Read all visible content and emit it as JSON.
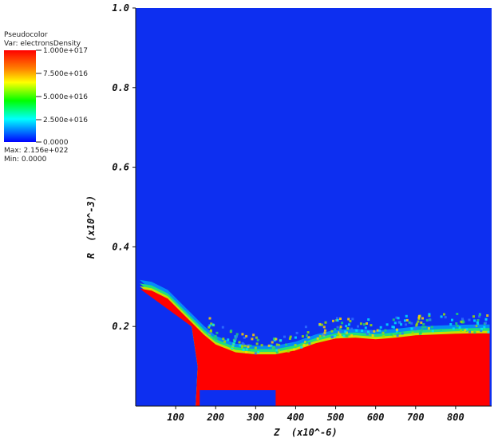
{
  "legend": {
    "plot_type": "Pseudocolor",
    "var_line": "Var: electronsDensity",
    "max_line": "Max: 2.156e+022",
    "min_line": "Min: 0.0000",
    "scale_labels": [
      "1.000e+017",
      "7.500e+016",
      "5.000e+016",
      "2.500e+016",
      "0.0000"
    ]
  },
  "chart_data": {
    "type": "heatmap",
    "xlabel": "Z  (x10^-6)",
    "ylabel": "R  (x10^-3)",
    "x_ticks": [
      100,
      200,
      300,
      400,
      500,
      600,
      700,
      800
    ],
    "y_ticks": [
      0.2,
      0.4,
      0.6,
      0.8,
      1.0
    ],
    "y_tick_labels": [
      "0.2",
      "0.4",
      "0.6",
      "0.8",
      "1.0"
    ],
    "xlim": [
      0,
      890
    ],
    "ylim": [
      0,
      1.0
    ],
    "colorbar_range": [
      0,
      1e+17
    ],
    "colormap": [
      "#0000ff",
      "#00ffff",
      "#00ff00",
      "#ffff00",
      "#ff0000"
    ],
    "background_color": "#0d2ff0",
    "dense_color": "#ff0000",
    "dense_region_boundary": [
      {
        "z": 10,
        "r": 0.295
      },
      {
        "z": 40,
        "r": 0.29
      },
      {
        "z": 80,
        "r": 0.27
      },
      {
        "z": 110,
        "r": 0.24
      },
      {
        "z": 140,
        "r": 0.21
      },
      {
        "z": 170,
        "r": 0.18
      },
      {
        "z": 200,
        "r": 0.155
      },
      {
        "z": 250,
        "r": 0.135
      },
      {
        "z": 300,
        "r": 0.13
      },
      {
        "z": 350,
        "r": 0.13
      },
      {
        "z": 400,
        "r": 0.14
      },
      {
        "z": 450,
        "r": 0.158
      },
      {
        "z": 500,
        "r": 0.17
      },
      {
        "z": 550,
        "r": 0.172
      },
      {
        "z": 600,
        "r": 0.168
      },
      {
        "z": 650,
        "r": 0.172
      },
      {
        "z": 700,
        "r": 0.178
      },
      {
        "z": 750,
        "r": 0.18
      },
      {
        "z": 800,
        "r": 0.182
      },
      {
        "z": 850,
        "r": 0.183
      },
      {
        "z": 885,
        "r": 0.183
      }
    ],
    "dense_region_base_cutout": {
      "z_from": 160,
      "z_to": 350,
      "r_top": 0.04
    }
  }
}
